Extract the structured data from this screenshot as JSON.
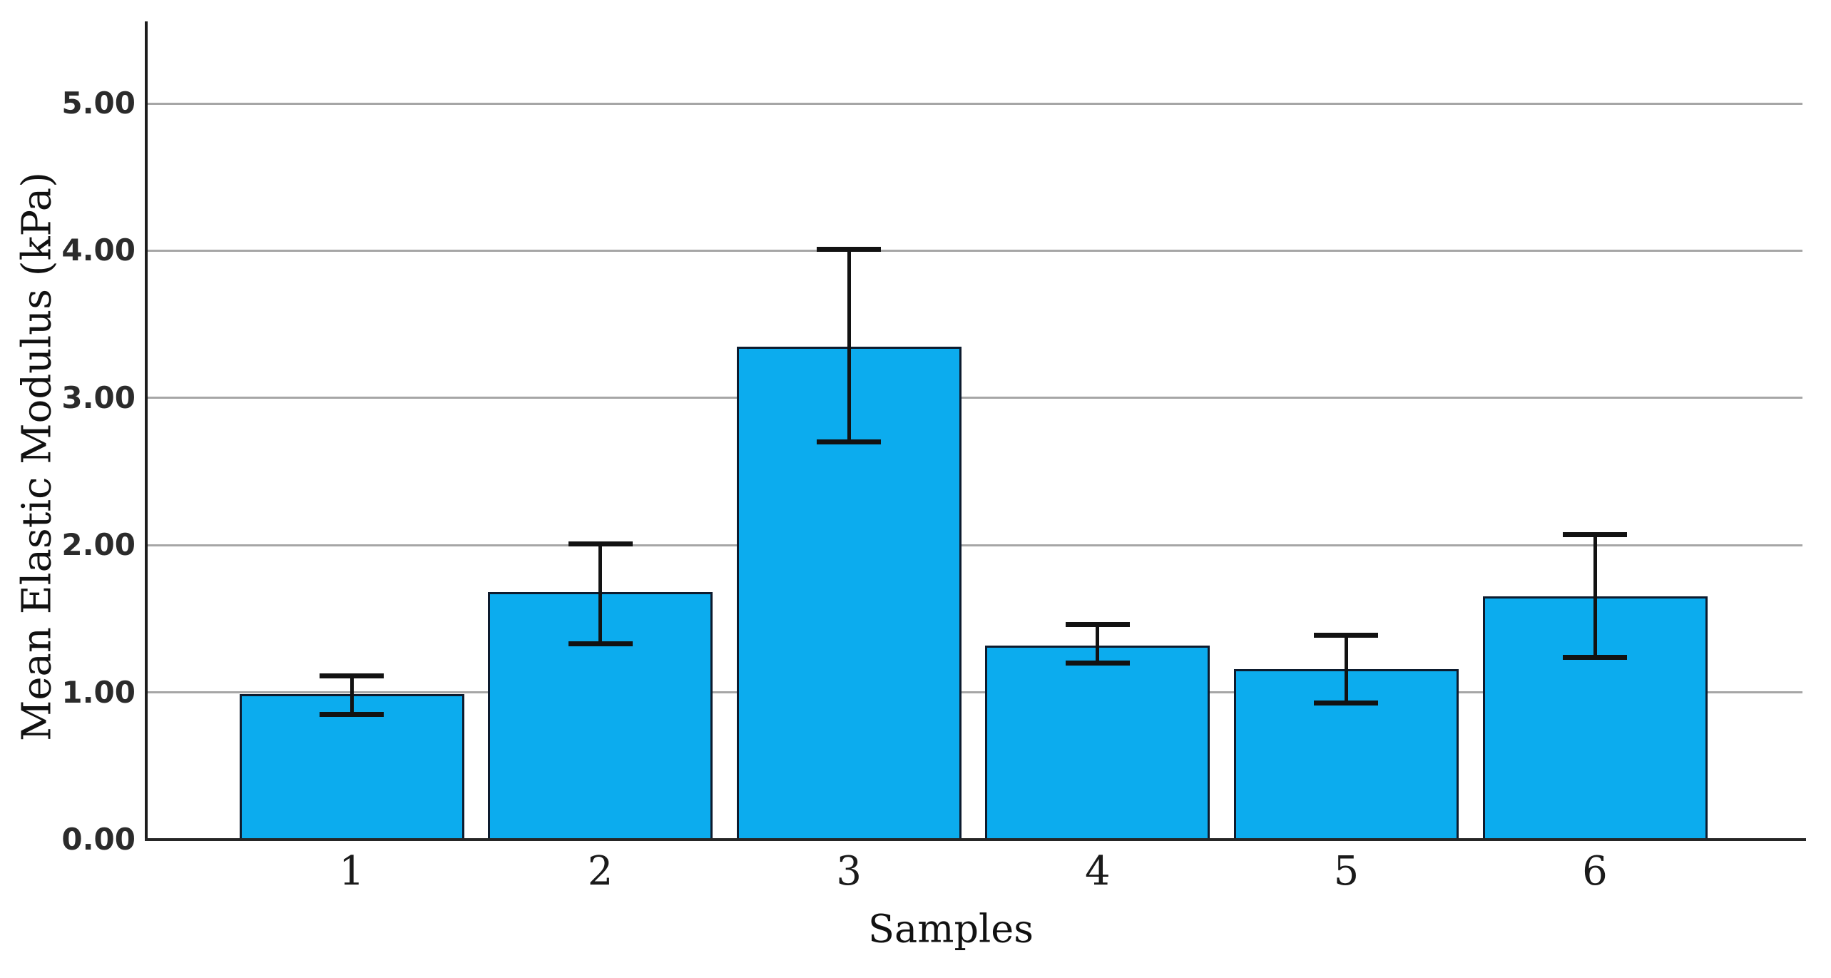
{
  "chart_data": {
    "type": "bar",
    "title": "",
    "xlabel": "Samples",
    "ylabel": "Mean Elastic Modulus (kPa)",
    "categories": [
      "1",
      "2",
      "3",
      "4",
      "5",
      "6"
    ],
    "series": [
      {
        "name": "Mean Elastic Modulus (kPa)",
        "values": [
          0.99,
          1.68,
          3.35,
          1.32,
          1.16,
          1.65
        ]
      }
    ],
    "error_bars": {
      "upper": [
        1.12,
        2.02,
        4.02,
        1.47,
        1.4,
        2.08
      ],
      "lower": [
        0.85,
        1.33,
        2.7,
        1.2,
        0.93,
        1.24
      ]
    },
    "y_ticks": [
      "0.00",
      "1.00",
      "2.00",
      "3.00",
      "4.00",
      "5.00"
    ],
    "ylim": [
      0,
      5.56
    ],
    "grid": "horizontal",
    "legend": "none",
    "colors": {
      "bar_fill": "#0cacee",
      "bar_border": "#0d1b2e",
      "error_bar": "#121212",
      "gridline": "#a6a6a6",
      "axis": "#1c1c1c",
      "text": "#1a1a1a",
      "background": "#ffffff"
    }
  }
}
